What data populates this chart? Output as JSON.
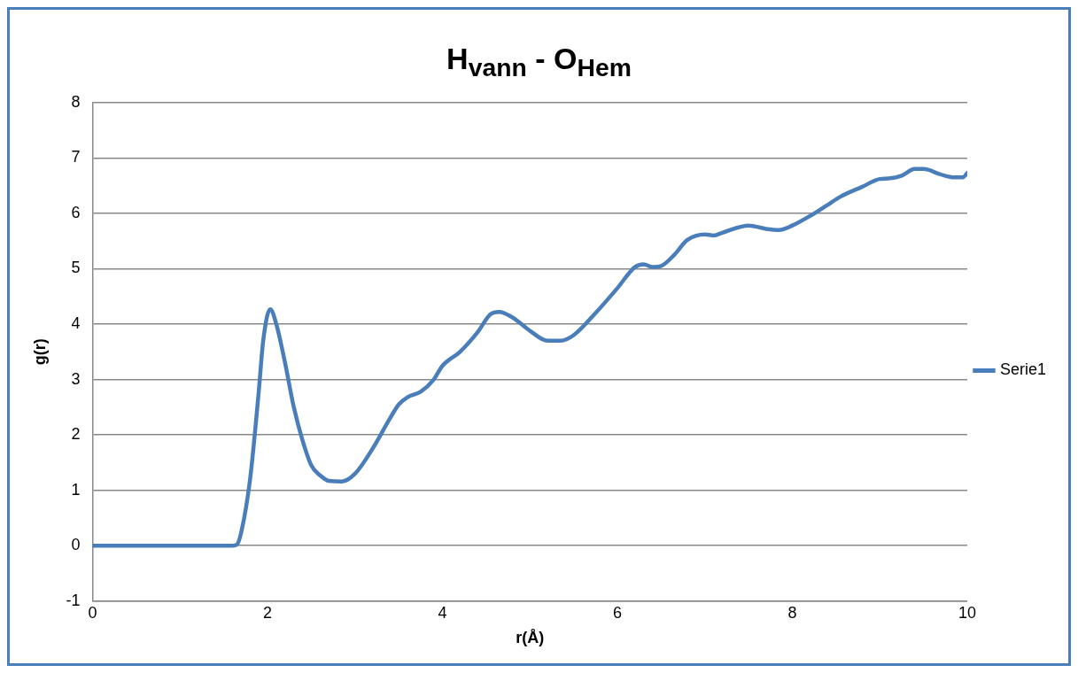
{
  "chart_data": {
    "type": "line",
    "title": "H$_{vann}$ - O$_{Hem}$",
    "xlabel": "r(Å)",
    "ylabel": "g(r)",
    "xlim": [
      0,
      10
    ],
    "xticks": [
      0,
      2,
      4,
      6,
      8,
      10
    ],
    "ylim": [
      -1,
      8
    ],
    "yticks": [
      -1,
      0,
      1,
      2,
      3,
      4,
      5,
      6,
      7,
      8
    ],
    "grid": "y",
    "legend": "right",
    "marker": "none",
    "line_style": "solid",
    "series": [
      {
        "name": "Serie1",
        "color": "#4a7ebb",
        "x": [
          0,
          0.5,
          1,
          1.5,
          1.6,
          1.65,
          1.7,
          1.8,
          1.9,
          1.95,
          2.03,
          2.1,
          2.2,
          2.3,
          2.4,
          2.5,
          2.6,
          2.7,
          2.85,
          3,
          3.2,
          3.4,
          3.5,
          3.6,
          3.75,
          3.9,
          4,
          4.2,
          4.4,
          4.55,
          4.65,
          4.8,
          5,
          5.2,
          5.35,
          5.5,
          5.75,
          6,
          6.2,
          6.3,
          6.4,
          6.5,
          6.65,
          6.8,
          7,
          7.1,
          7.2,
          7.5,
          7.7,
          7.85,
          8,
          8.2,
          8.4,
          8.55,
          8.8,
          9,
          9.1,
          9.25,
          9.4,
          9.5,
          9.7,
          9.85,
          9.95,
          10
        ],
        "values": [
          0,
          0,
          0,
          0,
          0,
          0.02,
          0.25,
          1.2,
          2.8,
          3.7,
          4.27,
          4,
          3.3,
          2.5,
          1.9,
          1.45,
          1.27,
          1.17,
          1.16,
          1.3,
          1.75,
          2.3,
          2.55,
          2.68,
          2.78,
          3,
          3.25,
          3.5,
          3.85,
          4.18,
          4.22,
          4.12,
          3.88,
          3.7,
          3.7,
          3.8,
          4.2,
          4.65,
          5.03,
          5.08,
          5.03,
          5.05,
          5.25,
          5.52,
          5.62,
          5.6,
          5.65,
          5.78,
          5.72,
          5.7,
          5.78,
          5.95,
          6.15,
          6.3,
          6.48,
          6.62,
          6.63,
          6.68,
          6.8,
          6.8,
          6.7,
          6.65,
          6.65,
          6.73
        ]
      }
    ]
  }
}
